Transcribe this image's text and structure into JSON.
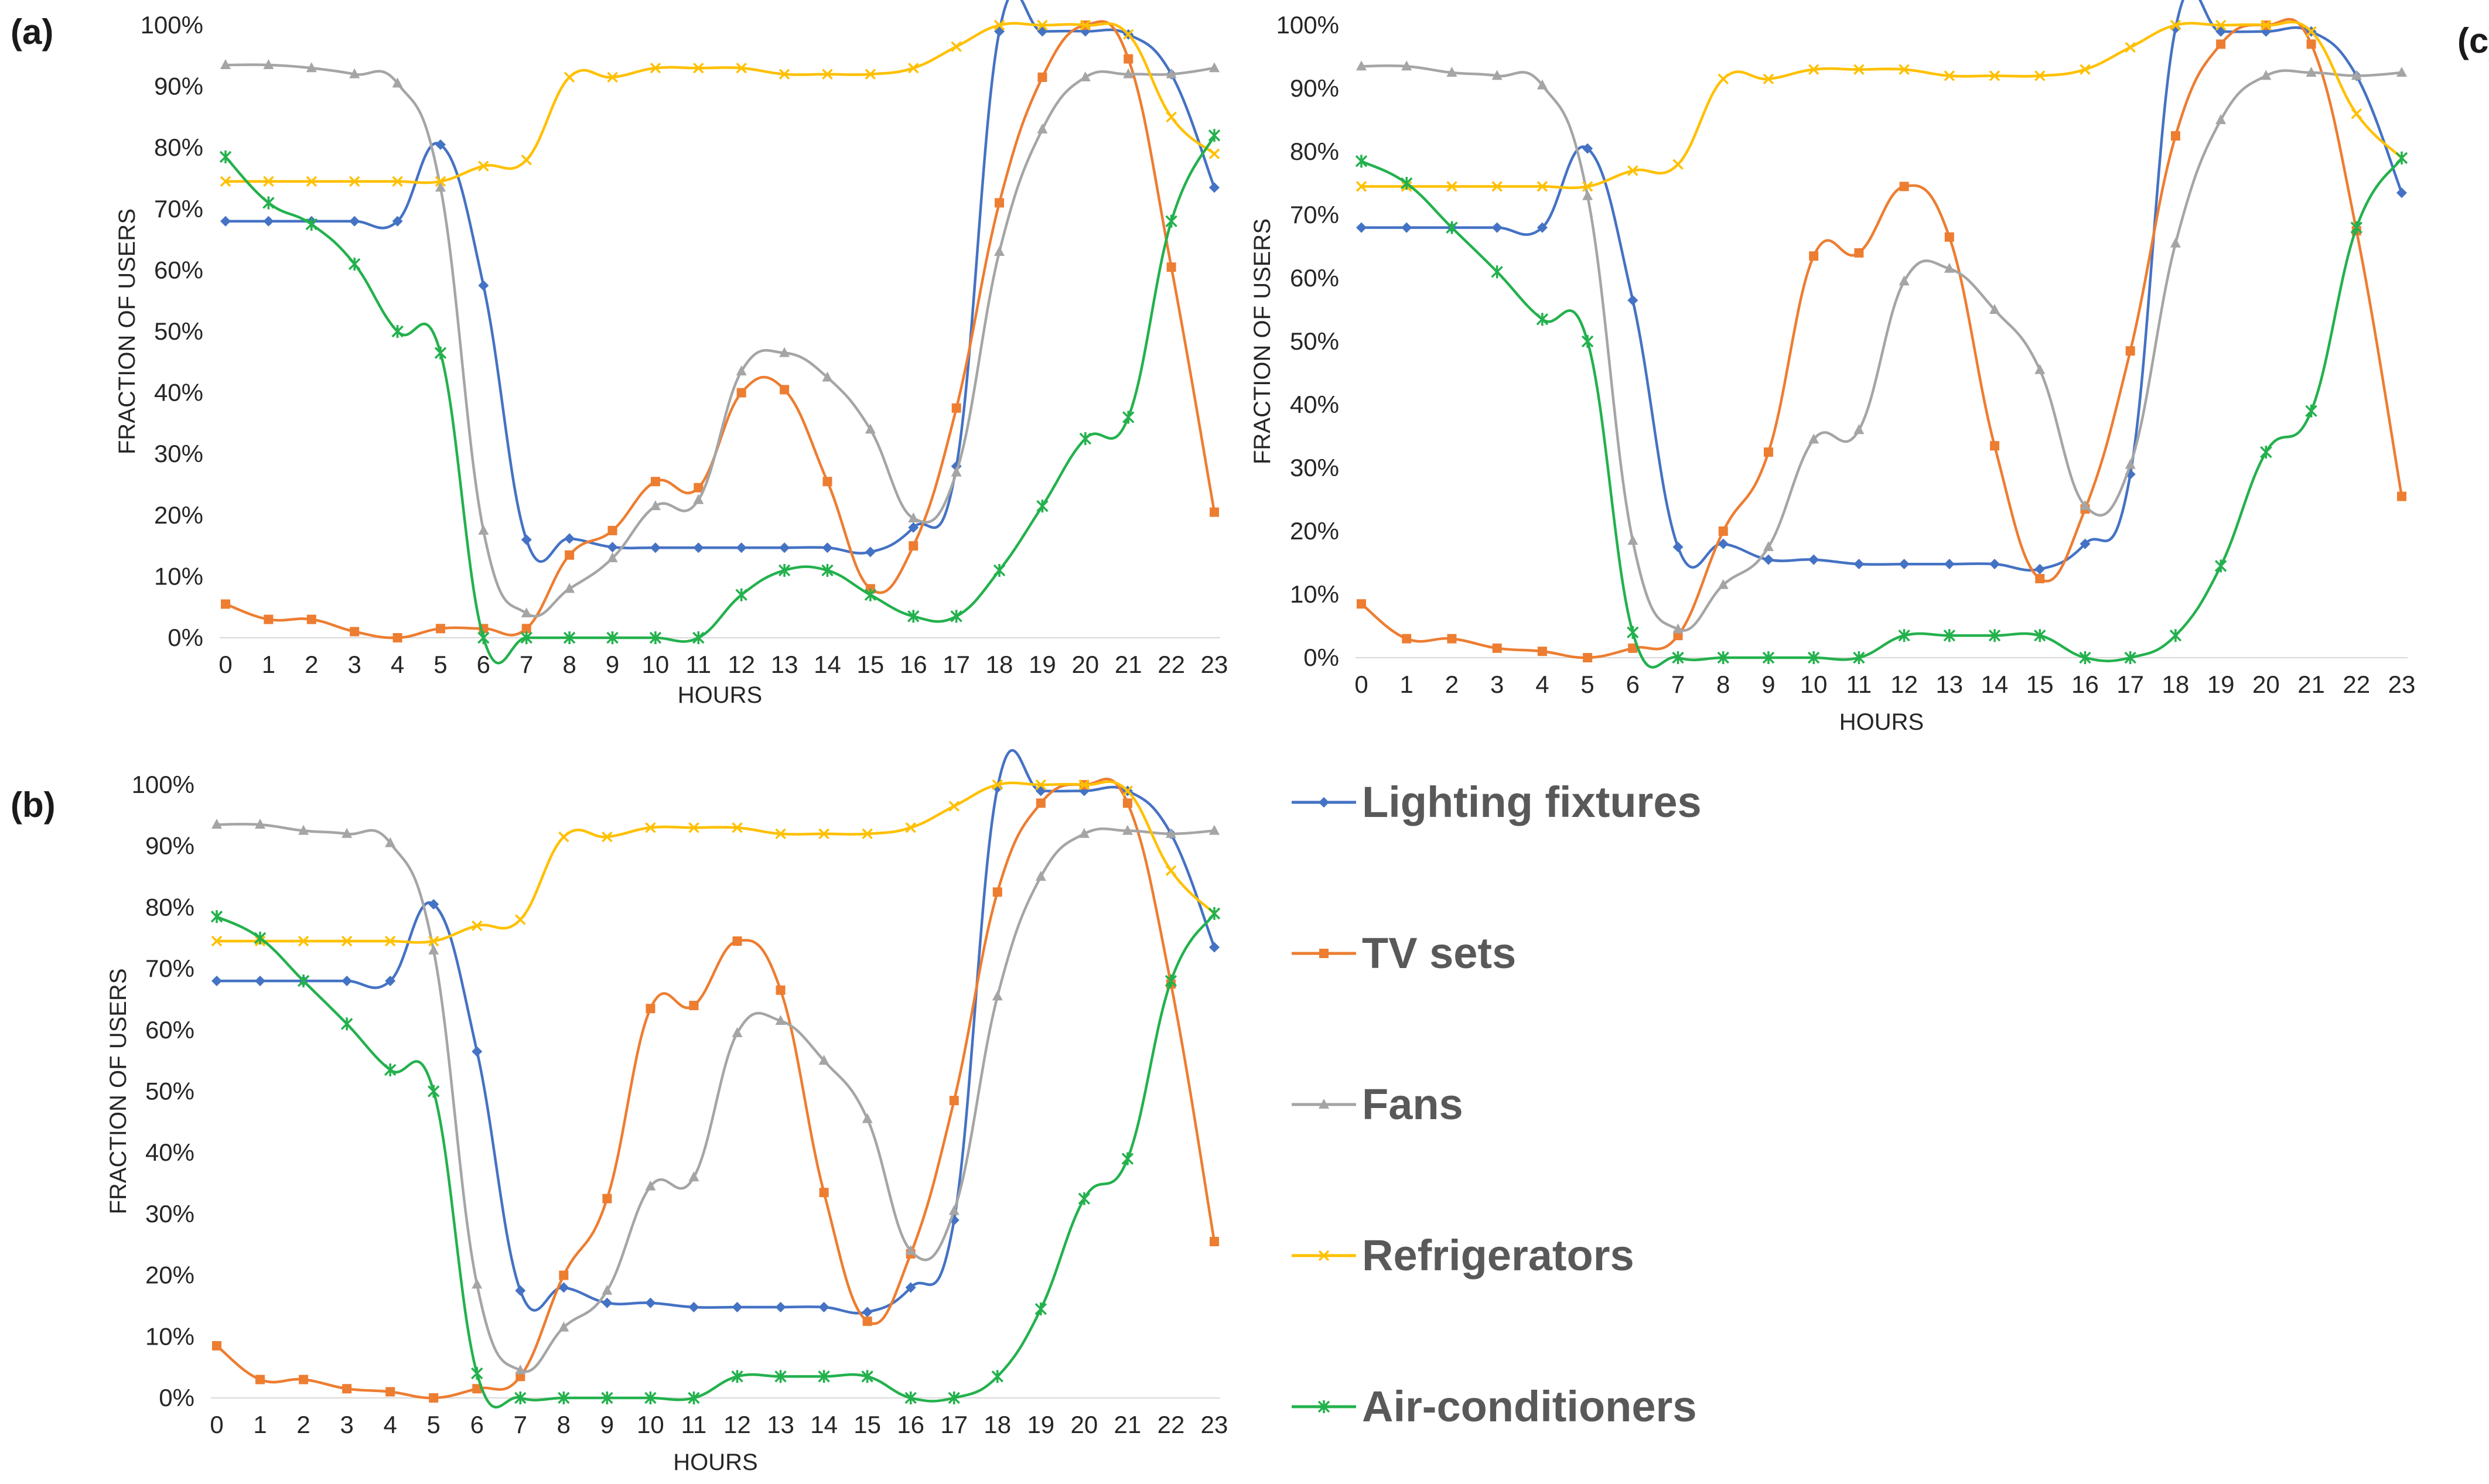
{
  "chart_data": {
    "type": "line",
    "hours": [
      0,
      1,
      2,
      3,
      4,
      5,
      6,
      7,
      8,
      9,
      10,
      11,
      12,
      13,
      14,
      15,
      16,
      17,
      18,
      19,
      20,
      21,
      22,
      23
    ],
    "y_ticks": [
      "0%",
      "10%",
      "20%",
      "30%",
      "40%",
      "50%",
      "60%",
      "70%",
      "80%",
      "90%",
      "100%"
    ],
    "ylim": [
      0,
      100
    ],
    "xlabel": "HOURS",
    "ylabel": "FRACTION OF USERS",
    "legend": [
      {
        "name": "Lighting fixtures",
        "color": "#4472C4",
        "marker": "diamond"
      },
      {
        "name": "TV sets",
        "color": "#ED7D31",
        "marker": "square"
      },
      {
        "name": "Fans",
        "color": "#A5A5A5",
        "marker": "triangle"
      },
      {
        "name": "Refrigerators",
        "color": "#FFC000",
        "marker": "x"
      },
      {
        "name": "Air-conditioners",
        "color": "#23B14D",
        "marker": "star"
      }
    ],
    "panels": [
      {
        "label": "(a)",
        "series": [
          {
            "name": "Lighting fixtures",
            "values": [
              68,
              68,
              68,
              68,
              68,
              80.5,
              57.5,
              16,
              16.2,
              14.8,
              14.7,
              14.7,
              14.7,
              14.7,
              14.7,
              14,
              18,
              28,
              99,
              99,
              99,
              98.5,
              92,
              73.5
            ]
          },
          {
            "name": "TV sets",
            "values": [
              5.5,
              3,
              3,
              1,
              0,
              1.5,
              1.5,
              1.5,
              13.5,
              17.5,
              25.5,
              24.5,
              40,
              40.5,
              25.5,
              8,
              15,
              37.5,
              71,
              91.5,
              100,
              94.5,
              60.5,
              20.5
            ]
          },
          {
            "name": "Fans",
            "values": [
              93.5,
              93.5,
              93,
              92,
              90.5,
              73.5,
              17.5,
              4,
              8,
              13,
              21.5,
              22.5,
              43.5,
              46.5,
              42.5,
              34,
              19.5,
              27,
              63,
              83,
              91.5,
              92,
              92,
              93
            ]
          },
          {
            "name": "Refrigerators",
            "values": [
              74.5,
              74.5,
              74.5,
              74.5,
              74.5,
              74.5,
              77,
              78,
              91.5,
              91.5,
              93,
              93,
              93,
              92,
              92,
              92,
              93,
              96.5,
              100,
              100,
              100,
              98.5,
              85,
              79
            ]
          },
          {
            "name": "Air-conditioners",
            "values": [
              78.5,
              71,
              67.5,
              61,
              50,
              46.5,
              0,
              0,
              0,
              0,
              0,
              0,
              7,
              11,
              11,
              7,
              3.5,
              3.5,
              11,
              21.5,
              32.5,
              36,
              68,
              82
            ]
          }
        ]
      },
      {
        "label": "(b)",
        "series": [
          {
            "name": "Lighting fixtures",
            "values": [
              68,
              68,
              68,
              68,
              68,
              80.5,
              56.5,
              17.5,
              18,
              15.5,
              15.5,
              14.8,
              14.8,
              14.8,
              14.8,
              14,
              18,
              29,
              99.5,
              99,
              99,
              99,
              92,
              73.5
            ]
          },
          {
            "name": "TV sets",
            "values": [
              8.5,
              3,
              3,
              1.5,
              1,
              0,
              1.5,
              3.5,
              20,
              32.5,
              63.5,
              64,
              74.5,
              66.5,
              33.5,
              12.5,
              23.5,
              48.5,
              82.5,
              97,
              100,
              97,
              67.5,
              25.5
            ]
          },
          {
            "name": "Fans",
            "values": [
              93.5,
              93.5,
              92.5,
              92,
              90.5,
              73,
              18.5,
              4.5,
              11.5,
              17.5,
              34.5,
              36,
              59.5,
              61.5,
              55,
              45.5,
              24,
              30.5,
              65.5,
              85,
              92,
              92.5,
              92,
              92.5
            ]
          },
          {
            "name": "Refrigerators",
            "values": [
              74.5,
              74.5,
              74.5,
              74.5,
              74.5,
              74.5,
              77,
              78,
              91.5,
              91.5,
              93,
              93,
              93,
              92,
              92,
              92,
              93,
              96.5,
              100,
              100,
              100,
              99,
              86,
              79
            ]
          },
          {
            "name": "Air-conditioners",
            "values": [
              78.5,
              75,
              68,
              61,
              53.5,
              50,
              4,
              0,
              0,
              0,
              0,
              0,
              3.5,
              3.5,
              3.5,
              3.5,
              0,
              0,
              3.5,
              14.5,
              32.5,
              39,
              68,
              79
            ]
          }
        ]
      },
      {
        "label": "(c)",
        "series": [
          {
            "name": "Lighting fixtures",
            "values": [
              68,
              68,
              68,
              68,
              68,
              80.5,
              56.5,
              17.5,
              18,
              15.5,
              15.5,
              14.8,
              14.8,
              14.8,
              14.8,
              14,
              18,
              29,
              99.5,
              99,
              99,
              99,
              92,
              73.5
            ]
          },
          {
            "name": "TV sets",
            "values": [
              8.5,
              3,
              3,
              1.5,
              1,
              0,
              1.5,
              3.5,
              20,
              32.5,
              63.5,
              64,
              74.5,
              66.5,
              33.5,
              12.5,
              23.5,
              48.5,
              82.5,
              97,
              100,
              97,
              67.5,
              25.5
            ]
          },
          {
            "name": "Fans",
            "values": [
              93.5,
              93.5,
              92.5,
              92,
              90.5,
              73,
              18.5,
              4.5,
              11.5,
              17.5,
              34.5,
              36,
              59.5,
              61.5,
              55,
              45.5,
              24,
              30.5,
              65.5,
              85,
              92,
              92.5,
              92,
              92.5
            ]
          },
          {
            "name": "Refrigerators",
            "values": [
              74.5,
              74.5,
              74.5,
              74.5,
              74.5,
              74.5,
              77,
              78,
              91.5,
              91.5,
              93,
              93,
              93,
              92,
              92,
              92,
              93,
              96.5,
              100,
              100,
              100,
              99,
              86,
              79
            ]
          },
          {
            "name": "Air-conditioners",
            "values": [
              78.5,
              75,
              68,
              61,
              53.5,
              50,
              4,
              0,
              0,
              0,
              0,
              0,
              3.5,
              3.5,
              3.5,
              3.5,
              0,
              0,
              3.5,
              14.5,
              32.5,
              39,
              68,
              79
            ]
          }
        ]
      }
    ]
  }
}
